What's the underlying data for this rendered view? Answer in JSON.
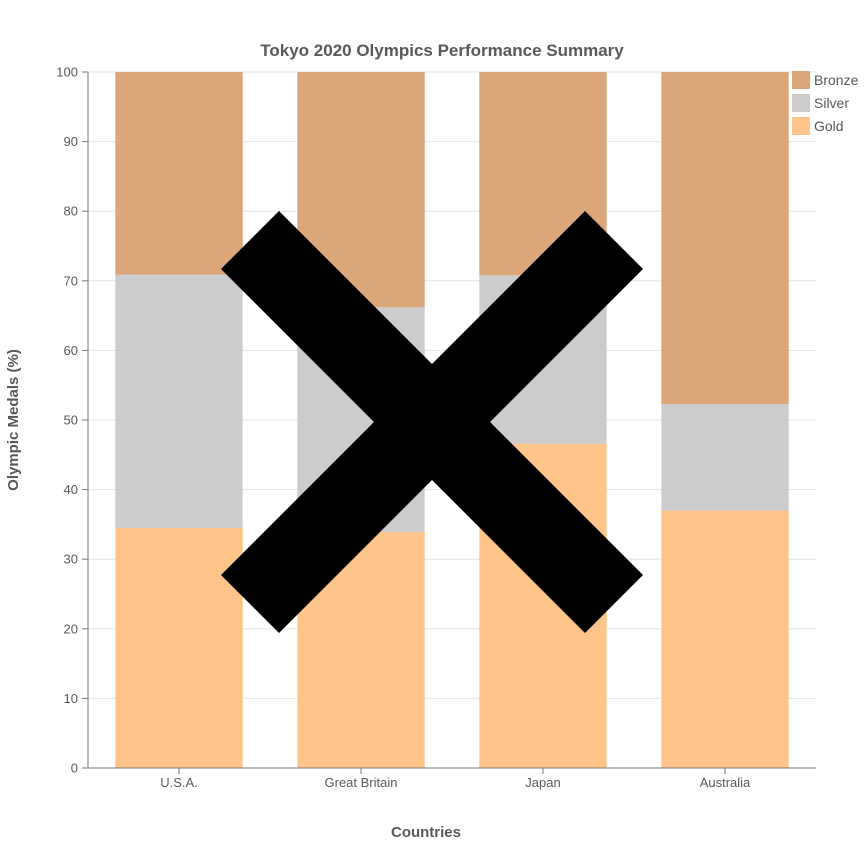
{
  "chart_data": {
    "type": "bar",
    "stacked": true,
    "title": "Tokyo 2020 Olympics Performance Summary",
    "xlabel": "Countries",
    "ylabel": "Olympic Medals (%)",
    "categories": [
      "U.S.A.",
      "Great Britain",
      "Japan",
      "Australia"
    ],
    "ylim": [
      0,
      100
    ],
    "yticks": [
      0,
      10,
      20,
      30,
      40,
      50,
      60,
      70,
      80,
      90,
      100
    ],
    "grid": true,
    "legend_position": "top-right",
    "series": [
      {
        "name": "Gold",
        "color": "#fec48a",
        "values": [
          34.5,
          33.9,
          46.6,
          37.0
        ]
      },
      {
        "name": "Silver",
        "color": "#cccccc",
        "values": [
          36.4,
          32.3,
          24.2,
          15.3
        ]
      },
      {
        "name": "Bronze",
        "color": "#dba679",
        "values": [
          29.1,
          33.8,
          29.2,
          47.7
        ]
      }
    ],
    "legend_order": [
      "Bronze",
      "Silver",
      "Gold"
    ],
    "overlay_icon": "cross-mark-icon",
    "overlay_color": "#000000"
  }
}
